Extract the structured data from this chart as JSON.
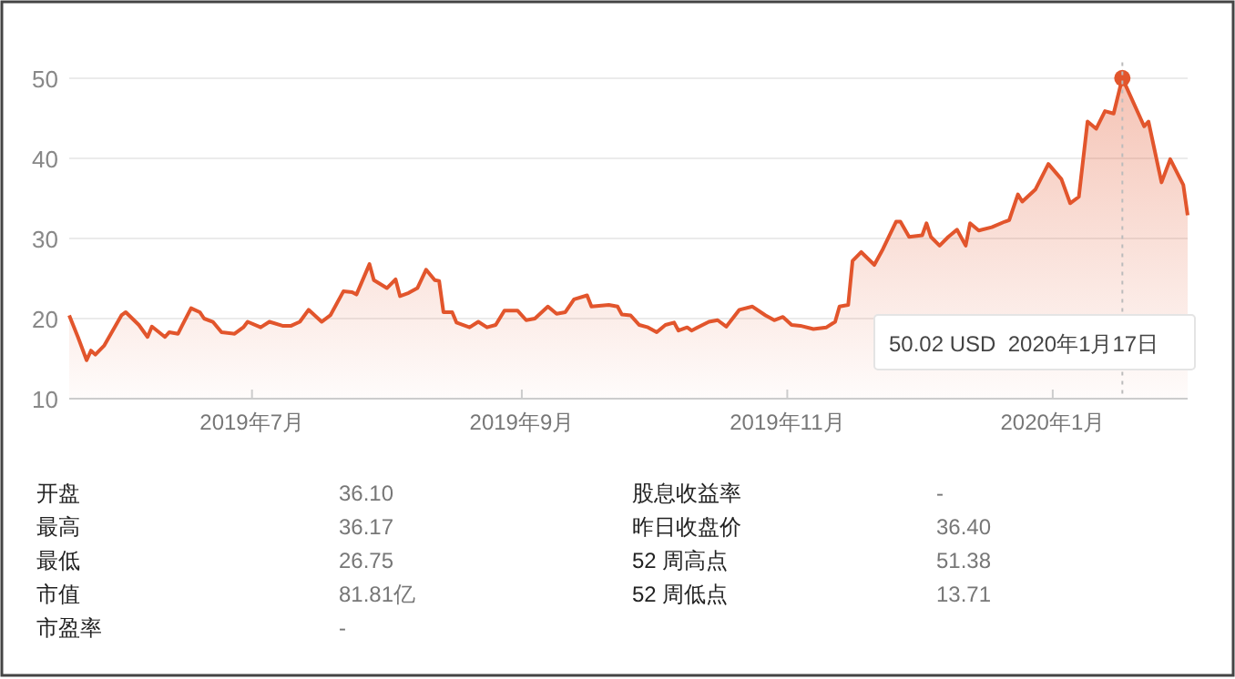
{
  "chart_data": [
    {
      "type": "area",
      "xlim": [
        "2019-05-20",
        "2020-02-01"
      ],
      "ylim": [
        10,
        52
      ],
      "yticks": [
        10,
        20,
        30,
        40,
        50
      ],
      "xticks": [
        {
          "value": "2019-07-01",
          "label": "2019年7月"
        },
        {
          "value": "2019-09-01",
          "label": "2019年9月"
        },
        {
          "value": "2019-11-01",
          "label": "2019年11月"
        },
        {
          "value": "2020-01-01",
          "label": "2020年1月"
        }
      ],
      "grid": "y",
      "marker": "none",
      "line_style": "solid",
      "ref_lines": [
        {
          "axis": "x",
          "value": "2020-01-17",
          "label": null,
          "line_style": "dotted",
          "color": "#bbbbbb"
        }
      ],
      "annotations": [
        "50.02 USD  2020年1月17日"
      ],
      "series": [
        {
          "color": "#e2552c",
          "x": [
            "2019-05-20",
            "2019-05-22",
            "2019-05-24",
            "2019-05-25",
            "2019-05-26",
            "2019-05-28",
            "2019-05-30",
            "2019-06-01",
            "2019-06-02",
            "2019-06-05",
            "2019-06-07",
            "2019-06-08",
            "2019-06-11",
            "2019-06-12",
            "2019-06-14",
            "2019-06-15",
            "2019-06-17",
            "2019-06-19",
            "2019-06-20",
            "2019-06-22",
            "2019-06-24",
            "2019-06-27",
            "2019-06-29",
            "2019-06-30",
            "2019-07-03",
            "2019-07-05",
            "2019-07-08",
            "2019-07-10",
            "2019-07-12",
            "2019-07-14",
            "2019-07-17",
            "2019-07-19",
            "2019-07-22",
            "2019-07-24",
            "2019-07-25",
            "2019-07-28",
            "2019-07-29",
            "2019-08-01",
            "2019-08-03",
            "2019-08-04",
            "2019-08-06",
            "2019-08-08",
            "2019-08-10",
            "2019-08-12",
            "2019-08-13",
            "2019-08-14",
            "2019-08-16",
            "2019-08-17",
            "2019-08-20",
            "2019-08-22",
            "2019-08-24",
            "2019-08-26",
            "2019-08-28",
            "2019-08-31",
            "2019-09-02",
            "2019-09-04",
            "2019-09-07",
            "2019-09-09",
            "2019-09-11",
            "2019-09-13",
            "2019-09-16",
            "2019-09-17",
            "2019-09-21",
            "2019-09-23",
            "2019-09-24",
            "2019-09-26",
            "2019-09-28",
            "2019-09-30",
            "2019-10-02",
            "2019-10-04",
            "2019-10-06",
            "2019-10-07",
            "2019-10-09",
            "2019-10-10",
            "2019-10-14",
            "2019-10-16",
            "2019-10-18",
            "2019-10-21",
            "2019-10-24",
            "2019-10-27",
            "2019-10-29",
            "2019-10-31",
            "2019-11-02",
            "2019-11-04",
            "2019-11-07",
            "2019-11-10",
            "2019-11-12",
            "2019-11-13",
            "2019-11-15",
            "2019-11-16",
            "2019-11-18",
            "2019-11-21",
            "2019-11-23",
            "2019-11-26",
            "2019-11-27",
            "2019-11-29",
            "2019-12-02",
            "2019-12-03",
            "2019-12-04",
            "2019-12-06",
            "2019-12-08",
            "2019-12-10",
            "2019-12-12",
            "2019-12-13",
            "2019-12-15",
            "2019-12-18",
            "2019-12-21",
            "2019-12-22",
            "2019-12-24",
            "2019-12-25",
            "2019-12-28",
            "2019-12-31",
            "2020-01-03",
            "2020-01-05",
            "2020-01-07",
            "2020-01-09",
            "2020-01-11",
            "2020-01-13",
            "2020-01-15",
            "2020-01-17",
            "2020-01-22",
            "2020-01-23",
            "2020-01-26",
            "2020-01-28",
            "2020-01-31",
            "2020-02-01"
          ],
          "values": [
            20.4,
            17.7,
            14.8,
            16.0,
            15.5,
            16.6,
            18.5,
            20.4,
            20.8,
            19.2,
            17.7,
            19.0,
            17.7,
            18.3,
            18.1,
            19.2,
            21.3,
            20.8,
            20.0,
            19.6,
            18.3,
            18.1,
            18.9,
            19.6,
            18.9,
            19.6,
            19.1,
            19.1,
            19.6,
            21.1,
            19.6,
            20.4,
            23.4,
            23.3,
            23.0,
            26.8,
            24.8,
            23.8,
            24.9,
            22.8,
            23.2,
            23.8,
            26.1,
            24.8,
            24.7,
            20.8,
            20.8,
            19.5,
            18.9,
            19.6,
            18.9,
            19.2,
            21.0,
            21.0,
            19.8,
            20.0,
            21.5,
            20.6,
            20.8,
            22.4,
            22.9,
            21.5,
            21.7,
            21.5,
            20.5,
            20.4,
            19.2,
            18.9,
            18.3,
            19.2,
            19.5,
            18.5,
            18.9,
            18.5,
            19.6,
            19.8,
            19.0,
            21.1,
            21.5,
            20.4,
            19.8,
            20.2,
            19.2,
            19.1,
            18.7,
            18.9,
            19.6,
            21.5,
            21.7,
            27.2,
            28.3,
            26.7,
            28.7,
            32.1,
            32.1,
            30.2,
            30.4,
            31.9,
            30.2,
            29.1,
            30.2,
            31.1,
            29.1,
            31.9,
            31.0,
            31.4,
            32.1,
            32.3,
            35.5,
            34.6,
            36.1,
            39.3,
            37.4,
            34.4,
            35.2,
            44.6,
            43.7,
            45.9,
            45.6,
            50.02,
            44.0,
            44.6,
            37.0,
            39.9,
            36.7,
            32.9
          ]
        },
        {
          "type": "scatter",
          "color": "#e2552c",
          "marker": "circle",
          "x": [
            "2020-01-17"
          ],
          "values": [
            50.02
          ]
        }
      ]
    },
    {
      "type": "other",
      "annotations": [
        "开盘",
        "36.10",
        "最高",
        "36.17",
        "最低",
        "26.75",
        "市值",
        "81.81亿",
        "市盈率",
        "-",
        "股息收益率",
        "-",
        "昨日收盘价",
        "36.40",
        "52 周高点",
        "51.38",
        "52 周低点",
        "13.71"
      ]
    }
  ]
}
